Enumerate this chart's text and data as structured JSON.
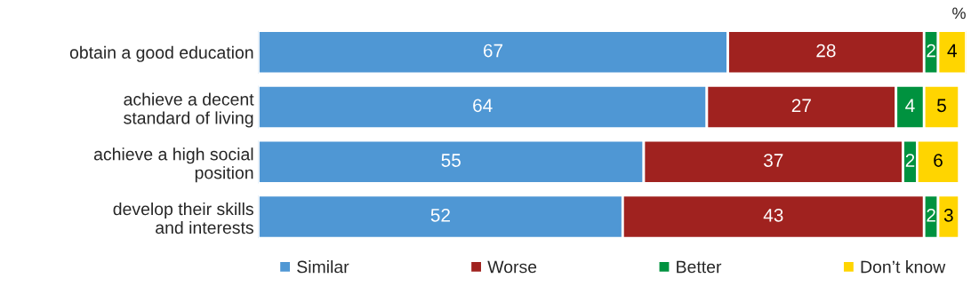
{
  "chart_data": {
    "type": "bar",
    "orientation": "horizontal",
    "stacked": true,
    "categories": [
      "obtain a good education",
      "achieve a decent\nstandard of living",
      "achieve a high social\nposition",
      "develop their skills\nand interests"
    ],
    "series": [
      {
        "name": "Similar",
        "color": "#4f97d4",
        "values": [
          67,
          64,
          55,
          52
        ]
      },
      {
        "name": "Worse",
        "color": "#a0221f",
        "values": [
          28,
          27,
          37,
          43
        ]
      },
      {
        "name": "Better",
        "color": "#00923f",
        "values": [
          2,
          4,
          2,
          2
        ]
      },
      {
        "name": "Don’t know",
        "color": "#ffd500",
        "values": [
          4,
          5,
          6,
          3
        ]
      }
    ],
    "xlim": [
      0,
      101
    ],
    "tick_labels": false,
    "data_labels": true,
    "legend": "bottom",
    "grid": false,
    "annotations": [
      "%"
    ]
  }
}
